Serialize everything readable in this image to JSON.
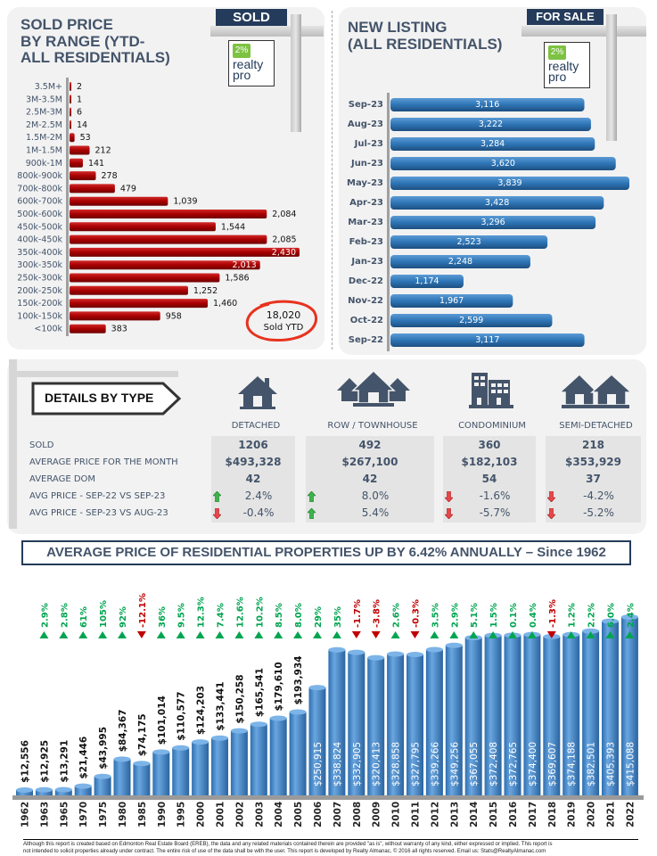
{
  "sold_panel": {
    "title_lines": [
      "SOLD PRICE",
      "BY RANGE (YTD-",
      "ALL RESIDENTIALS)"
    ],
    "sign": "SOLD",
    "total_value": "18,020",
    "total_label": "Sold YTD"
  },
  "listing_panel": {
    "title_lines": [
      "NEW LISTING",
      "(ALL RESIDENTIALS)"
    ],
    "sign": "FOR SALE"
  },
  "logo": {
    "pct": "2%",
    "word1": "realty",
    "word2": "pro"
  },
  "details": {
    "heading": "DETAILS BY TYPE",
    "row_labels": [
      "SOLD",
      "AVERAGE PRICE FOR THE MONTH",
      "AVERAGE DOM",
      "AVG PRICE - SEP-22 VS SEP-23",
      "AVG PRICE - SEP-23 VS AUG-23"
    ],
    "columns": [
      {
        "name": "DETACHED",
        "icon": "house-icon",
        "sold": "1206",
        "avg_price": "$493,328",
        "dom": "42",
        "yoy": "2.4%",
        "yoy_dir": "up",
        "mom": "-0.4%",
        "mom_dir": "down"
      },
      {
        "name": "ROW / TOWNHOUSE",
        "icon": "townhouse-icon",
        "sold": "492",
        "avg_price": "$267,100",
        "dom": "42",
        "yoy": "8.0%",
        "yoy_dir": "up",
        "mom": "5.4%",
        "mom_dir": "up"
      },
      {
        "name": "CONDOMINIUM",
        "icon": "condo-building-icon",
        "sold": "360",
        "avg_price": "$182,103",
        "dom": "54",
        "yoy": "-1.6%",
        "yoy_dir": "down",
        "mom": "-5.7%",
        "mom_dir": "down"
      },
      {
        "name": "SEMI-DETACHED",
        "icon": "semi-detached-icon",
        "sold": "218",
        "avg_price": "$353,929",
        "dom": "37",
        "yoy": "-4.2%",
        "yoy_dir": "down",
        "mom": "-5.2%",
        "mom_dir": "down"
      }
    ]
  },
  "banner": "AVERAGE PRICE OF RESIDENTIAL PROPERTIES UP BY 6.42% ANNUALLY – Since 1962",
  "footer": {
    "line1": "Although this report is created based on Edmonton Real Estate Board (EREB), the data and any related materials contained therein are provided \"as is\", without warranty of any kind, either expressed or implied.  This report is",
    "line2": "not intended to solicit properties already under contract.  The entire risk of use of the data shall be with the user.  This report is developed by Realty Almanac, © 2016 all rights reserved. Email us: Stats@RealtyAlmanac.com"
  },
  "colors": {
    "red_bar": "#a80000",
    "blue_bar": "#2e75b6",
    "navy": "#243b5b",
    "text": "#44546a",
    "green": "#00a550",
    "down_red": "#c00000"
  },
  "chart_data": [
    {
      "type": "bar",
      "orientation": "horizontal",
      "title": "SOLD PRICE BY RANGE (YTD- ALL RESIDENTIALS)",
      "categories": [
        "3.5M+",
        "3M-3.5M",
        "2.5M-3M",
        "2M-2.5M",
        "1.5M-2M",
        "1M-1.5M",
        "900k-1M",
        "800k-900k",
        "700k-800k",
        "600k-700k",
        "500k-600k",
        "450k-500k",
        "400k-450k",
        "350k-400k",
        "300k-350k",
        "250k-300k",
        "200k-250k",
        "150k-200k",
        "100k-150k",
        "<100k"
      ],
      "values": [
        2,
        1,
        6,
        14,
        53,
        212,
        141,
        278,
        479,
        1039,
        2084,
        1544,
        2085,
        2430,
        2013,
        1586,
        1252,
        1460,
        958,
        383
      ],
      "labels": [
        "2",
        "1",
        "6",
        "14",
        "53",
        "212",
        "141",
        "278",
        "479",
        "1,039",
        "2,084",
        "1,544",
        "2,085",
        "2,430",
        "2,013",
        "1,586",
        "1,252",
        "1,460",
        "958",
        "383"
      ],
      "xlim": [
        0,
        2430
      ]
    },
    {
      "type": "bar",
      "orientation": "horizontal",
      "title": "NEW LISTING (ALL RESIDENTIALS)",
      "categories": [
        "Sep-23",
        "Aug-23",
        "Jul-23",
        "Jun-23",
        "May-23",
        "Apr-23",
        "Mar-23",
        "Feb-23",
        "Jan-23",
        "Dec-22",
        "Nov-22",
        "Oct-22",
        "Sep-22"
      ],
      "values": [
        3116,
        3222,
        3284,
        3620,
        3839,
        3428,
        3296,
        2523,
        2248,
        1174,
        1967,
        2599,
        3117
      ],
      "labels": [
        "3,116",
        "3,222",
        "3,284",
        "3,620",
        "3,839",
        "3,428",
        "3,296",
        "2,523",
        "2,248",
        "1,174",
        "1,967",
        "2,599",
        "3,117"
      ],
      "xlim": [
        0,
        3839
      ]
    },
    {
      "type": "bar",
      "title": "AVERAGE PRICE OF RESIDENTIAL PROPERTIES UP BY 6.42% ANNUALLY – Since 1962",
      "categories": [
        "1962",
        "1963",
        "1965",
        "1970",
        "1975",
        "1980",
        "1985",
        "1990",
        "1995",
        "2000",
        "2001",
        "2002",
        "2003",
        "2004",
        "2005",
        "2006",
        "2007",
        "2008",
        "2009",
        "2010",
        "2011",
        "2012",
        "2013",
        "2014",
        "2015",
        "2016",
        "2017",
        "2018",
        "2019",
        "2020",
        "2021",
        "2022"
      ],
      "values": [
        12556,
        12925,
        13291,
        21446,
        43995,
        84367,
        74175,
        101014,
        110577,
        124203,
        133441,
        150258,
        165541,
        179610,
        193934,
        250915,
        338824,
        332905,
        320413,
        328858,
        327795,
        339266,
        349256,
        367055,
        372408,
        372765,
        374400,
        369607,
        374188,
        382501,
        405393,
        415088
      ],
      "labels": [
        "$12,556",
        "$12,925",
        "$13,291",
        "$21,446",
        "$43,995",
        "$84,367",
        "$74,175",
        "$101,014",
        "$110,577",
        "$124,203",
        "$133,441",
        "$150,258",
        "$165,541",
        "$179,610",
        "$193,934",
        "$250,915",
        "$338,824",
        "$332,905",
        "$320,413",
        "$328,858",
        "$327,795",
        "$339,266",
        "$349,256",
        "$367,055",
        "$372,408",
        "$372,765",
        "$374,400",
        "$369,607",
        "$374,188",
        "$382,501",
        "$405,393",
        "$415,088"
      ],
      "changes": [
        "2.9%",
        "2.8%",
        "61%",
        "105%",
        "92%",
        "-12.1%",
        "36%",
        "9.5%",
        "12.3%",
        "7.4%",
        "12.6%",
        "10.2%",
        "8.5%",
        "8.0%",
        "29%",
        "35%",
        "-1.7%",
        "-3.8%",
        "2.6%",
        "-0.3%",
        "3.5%",
        "2.9%",
        "5.1%",
        "1.5%",
        "0.1%",
        "0.4%",
        "-1.3%",
        "1.2%",
        "2.2%",
        "6.0%",
        "2.4%"
      ],
      "ylim": [
        0,
        415088
      ]
    }
  ]
}
